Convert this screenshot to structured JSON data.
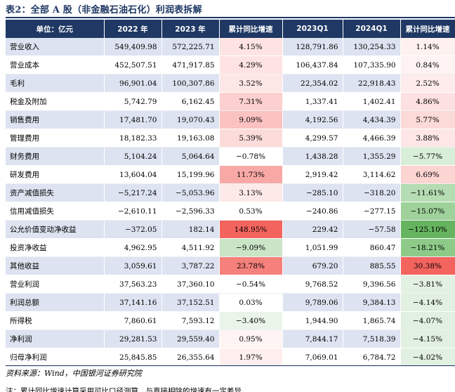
{
  "title": "表2：全部 A 股（非金融石油石化）利润表拆解",
  "headers": [
    "单位：亿元",
    "2022 年",
    "2023 年",
    "累计同比增速",
    "2023Q1",
    "2024Q1",
    "累计同比增速"
  ],
  "colors": {
    "header_bg": "#1f3864",
    "band_bg": "#dde3f0",
    "positive_strong": "#f4645f",
    "positive_mid": "#f8a9a6",
    "positive_light": "#fbd6d4",
    "positive_faint": "#fde9e8",
    "negative_faint": "#e6f2e5",
    "negative_light": "#c4e3c2",
    "negative_mid": "#92ca8e",
    "negative_strong": "#66b45f"
  },
  "rows": [
    {
      "label": "营业收入",
      "y2022": "549,409.98",
      "y2023": "572,225.71",
      "g1": "4.15%",
      "q2023": "128,791.86",
      "q2024": "130,254.33",
      "g2": "1.14%",
      "g1_color": "#fde4e3",
      "g2_color": "#fef1f0"
    },
    {
      "label": "营业成本",
      "y2022": "452,507.51",
      "y2023": "471,917.85",
      "g1": "4.29%",
      "q2023": "106,437.84",
      "q2024": "107,335.90",
      "g2": "0.84%",
      "g1_color": "#fde3e2",
      "g2_color": "#fef3f2"
    },
    {
      "label": "毛利",
      "y2022": "96,901.04",
      "y2023": "100,307.86",
      "g1": "3.52%",
      "q2023": "22,354.02",
      "q2024": "22,918.43",
      "g2": "2.52%",
      "g1_color": "#fde7e6",
      "g2_color": "#fdeceb"
    },
    {
      "label": "税金及附加",
      "y2022": "5,742.79",
      "y2023": "6,162.45",
      "g1": "7.31%",
      "q2023": "1,337.41",
      "q2024": "1,402.41",
      "g2": "4.86%",
      "g1_color": "#fbd0ce",
      "g2_color": "#fde1e0"
    },
    {
      "label": "销售费用",
      "y2022": "17,481.70",
      "y2023": "19,070.43",
      "g1": "9.09%",
      "q2023": "4,192.56",
      "q2024": "4,434.39",
      "g2": "5.77%",
      "g1_color": "#fac2c0",
      "g2_color": "#fcdad8"
    },
    {
      "label": "管理费用",
      "y2022": "18,182.33",
      "y2023": "19,163.08",
      "g1": "5.39%",
      "q2023": "4,299.57",
      "q2024": "4,466.39",
      "g2": "3.88%",
      "g1_color": "#fcdcda",
      "g2_color": "#fde6e5"
    },
    {
      "label": "财务费用",
      "y2022": "5,104.24",
      "y2023": "5,064.64",
      "g1": "−0.78%",
      "q2023": "1,438.28",
      "q2024": "1,355.29",
      "g2": "−5.77%",
      "g1_color": "#ffffff",
      "g2_color": "#d9eed8"
    },
    {
      "label": "研发费用",
      "y2022": "13,604.04",
      "y2023": "15,199.96",
      "g1": "11.73%",
      "q2023": "2,919.42",
      "q2024": "3,114.62",
      "g2": "6.69%",
      "g1_color": "#f8a9a6",
      "g2_color": "#fcd4d2"
    },
    {
      "label": "资产减值损失",
      "y2022": "−5,217.24",
      "y2023": "−5,053.96",
      "g1": "3.13%",
      "q2023": "−285.10",
      "q2024": "−318.20",
      "g2": "−11.61%",
      "g1_color": "#fde9e8",
      "g2_color": "#b5dcb2"
    },
    {
      "label": "信用减值损失",
      "y2022": "−2,610.11",
      "y2023": "−2,596.33",
      "g1": "0.53%",
      "q2023": "−240.86",
      "q2024": "−277.15",
      "g2": "−15.07%",
      "g1_color": "#ffffff",
      "g2_color": "#9fd29b"
    },
    {
      "label": "公允价值变动净收益",
      "y2022": "−372.05",
      "y2023": "182.14",
      "g1": "148.95%",
      "q2023": "229.42",
      "q2024": "−57.58",
      "g2": "−125.10%",
      "g1_color": "#f4645f",
      "g2_color": "#66b45f"
    },
    {
      "label": "投资净收益",
      "y2022": "4,962.95",
      "y2023": "4,511.92",
      "g1": "−9.09%",
      "q2023": "1,051.99",
      "q2024": "860.47",
      "g2": "−18.21%",
      "g1_color": "#c9e5c6",
      "g2_color": "#8ecb89"
    },
    {
      "label": "其他收益",
      "y2022": "3,059.61",
      "y2023": "3,787.22",
      "g1": "23.78%",
      "q2023": "679.20",
      "q2024": "885.55",
      "g2": "30.38%",
      "g1_color": "#f6807b",
      "g2_color": "#f4645f"
    },
    {
      "label": "营业利润",
      "y2022": "37,563.23",
      "y2023": "37,360.10",
      "g1": "−0.54%",
      "q2023": "9,768.52",
      "q2024": "9,396.56",
      "g2": "−3.81%",
      "g1_color": "#ffffff",
      "g2_color": "#e3f1e2"
    },
    {
      "label": "利润总额",
      "y2022": "37,141.16",
      "y2023": "37,152.51",
      "g1": "0.03%",
      "q2023": "9,789.06",
      "q2024": "9,384.13",
      "g2": "−4.14%",
      "g1_color": "#ffffff",
      "g2_color": "#e1f0e0"
    },
    {
      "label": "所得税",
      "y2022": "7,860.61",
      "y2023": "7,593.12",
      "g1": "−3.40%",
      "q2023": "1,944.90",
      "q2024": "1,865.74",
      "g2": "−4.07%",
      "g1_color": "#eaf4e9",
      "g2_color": "#e1f0e0"
    },
    {
      "label": "净利润",
      "y2022": "29,281.53",
      "y2023": "29,559.40",
      "g1": "0.95%",
      "q2023": "7,844.17",
      "q2024": "7,518.39",
      "g2": "−4.15%",
      "g1_color": "#fef4f3",
      "g2_color": "#e1f0e0"
    },
    {
      "label": "归母净利润",
      "y2022": "25,845.85",
      "y2023": "26,355.64",
      "g1": "1.97%",
      "q2023": "7,069.01",
      "q2024": "6,784.72",
      "g2": "−4.02%",
      "g1_color": "#feefee",
      "g2_color": "#e1f0e0"
    }
  ],
  "source": "资料来源：Wind，中国银河证券研究院",
  "note": "注：累计同比增速计算采用可比口径测算，与直接相除的增速有一定差异"
}
